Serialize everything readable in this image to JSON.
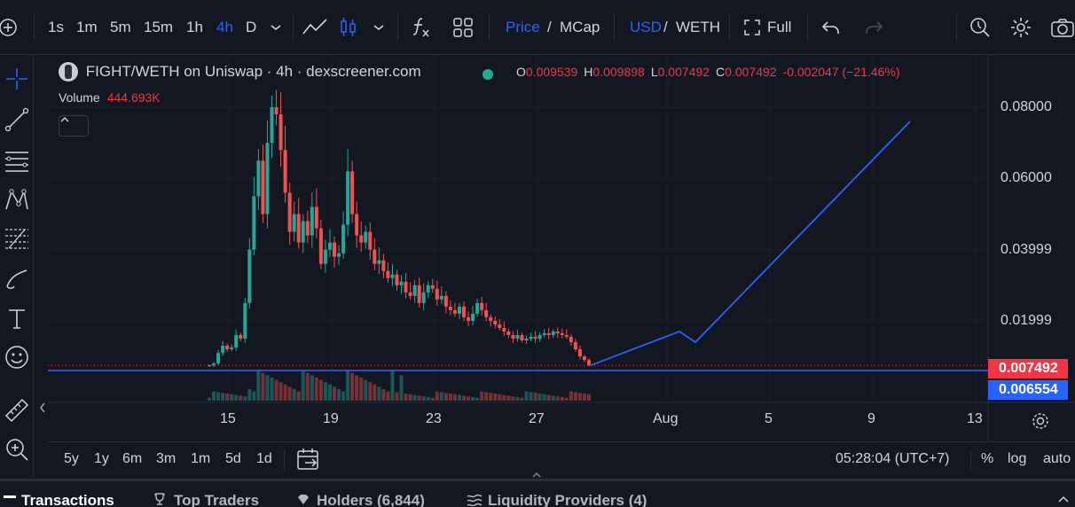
{
  "toolbar": {
    "intervals": [
      "1s",
      "1m",
      "5m",
      "15m",
      "1h",
      "4h",
      "D"
    ],
    "active_interval": "4h",
    "price_label": "Price",
    "mcap_label": "MCap",
    "usd_label": "USD",
    "weth_label": "WETH",
    "slash": "/",
    "full_label": "Full"
  },
  "legend": {
    "title": "FIGHT/WETH on Uniswap · 4h · dexscreener.com",
    "o_label": "O",
    "o_value": "0.009539",
    "h_label": "H",
    "h_value": "0.009898",
    "l_label": "L",
    "l_value": "0.007492",
    "c_label": "C",
    "c_value": "0.007492",
    "change": "-0.002047 (−21.46%)",
    "volume_label": "Volume",
    "volume_value": "444.693K"
  },
  "chart_data": {
    "type": "candlestick",
    "pair": "FIGHT/WETH",
    "interval": "4h",
    "x_ticks": [
      "15",
      "19",
      "23",
      "27",
      "Aug",
      "5",
      "9",
      "13"
    ],
    "y_ticks": [
      "0.08000",
      "0.06000",
      "0.03999",
      "0.01999"
    ],
    "ylim": [
      0.0,
      0.085
    ],
    "last_price": "0.007492",
    "horizontal_line_price": "0.006554",
    "colors": {
      "up": "#26a69a",
      "down": "#ef5350",
      "drawing": "#2962ff"
    },
    "close_trajectory": [
      0.0075,
      0.008,
      0.011,
      0.013,
      0.012,
      0.0125,
      0.016,
      0.015,
      0.025,
      0.04,
      0.055,
      0.065,
      0.05,
      0.07,
      0.08,
      0.078,
      0.068,
      0.056,
      0.045,
      0.05,
      0.042,
      0.048,
      0.044,
      0.052,
      0.046,
      0.036,
      0.04,
      0.042,
      0.038,
      0.039,
      0.047,
      0.062,
      0.05,
      0.044,
      0.042,
      0.045,
      0.04,
      0.036,
      0.037,
      0.034,
      0.032,
      0.033,
      0.03,
      0.031,
      0.028,
      0.027,
      0.03,
      0.025,
      0.028,
      0.03,
      0.029,
      0.026,
      0.027,
      0.024,
      0.023,
      0.022,
      0.024,
      0.021,
      0.02,
      0.022,
      0.025,
      0.023,
      0.021,
      0.02,
      0.019,
      0.018,
      0.017,
      0.016,
      0.015,
      0.016,
      0.0145,
      0.015,
      0.0155,
      0.015,
      0.016,
      0.0165,
      0.016,
      0.017,
      0.0165,
      0.016,
      0.0155,
      0.014,
      0.012,
      0.01,
      0.009,
      0.0075
    ],
    "drawing_line": [
      [
        "27",
        0.0075
      ],
      [
        "Aug",
        0.017
      ],
      [
        "Aug",
        0.014
      ],
      [
        "13",
        0.076
      ]
    ]
  },
  "timebar": {
    "ranges": [
      "5y",
      "1y",
      "6m",
      "3m",
      "1m",
      "5d",
      "1d"
    ],
    "clock": "05:28:04 (UTC+7)",
    "percent": "%",
    "log": "log",
    "auto": "auto"
  },
  "tabs": [
    {
      "label": "Transactions"
    },
    {
      "label": "Top Traders"
    },
    {
      "label": "Holders (6,844)"
    },
    {
      "label": "Liquidity Providers (4)"
    }
  ]
}
